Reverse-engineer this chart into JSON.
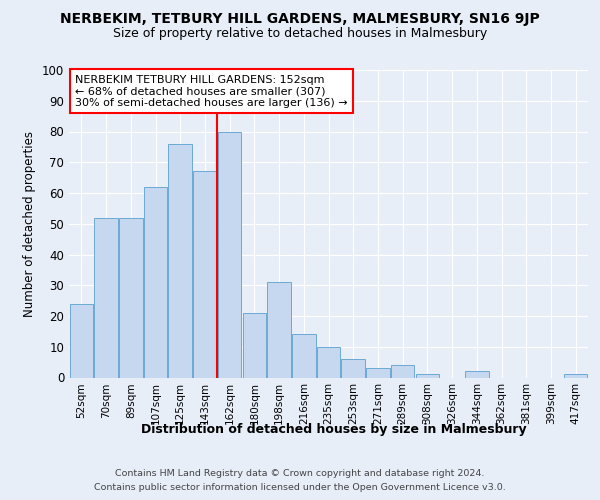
{
  "title1": "NERBEKIM, TETBURY HILL GARDENS, MALMESBURY, SN16 9JP",
  "title2": "Size of property relative to detached houses in Malmesbury",
  "xlabel": "Distribution of detached houses by size in Malmesbury",
  "ylabel": "Number of detached properties",
  "footer1": "Contains HM Land Registry data © Crown copyright and database right 2024.",
  "footer2": "Contains public sector information licensed under the Open Government Licence v3.0.",
  "categories": [
    "52sqm",
    "70sqm",
    "89sqm",
    "107sqm",
    "125sqm",
    "143sqm",
    "162sqm",
    "180sqm",
    "198sqm",
    "216sqm",
    "235sqm",
    "253sqm",
    "271sqm",
    "289sqm",
    "308sqm",
    "326sqm",
    "344sqm",
    "362sqm",
    "381sqm",
    "399sqm",
    "417sqm"
  ],
  "values": [
    24,
    52,
    52,
    62,
    76,
    67,
    80,
    21,
    31,
    14,
    10,
    6,
    3,
    4,
    1,
    0,
    2,
    0,
    0,
    0,
    1
  ],
  "bar_color": "#c5d8f0",
  "bar_edge_color": "#6aaad4",
  "vline_x": 5.5,
  "vline_color": "red",
  "annotation_line1": "NERBEKIM TETBURY HILL GARDENS: 152sqm",
  "annotation_line2": "← 68% of detached houses are smaller (307)",
  "annotation_line3": "30% of semi-detached houses are larger (136) →",
  "annotation_box_facecolor": "white",
  "annotation_box_edgecolor": "red",
  "ylim": [
    0,
    100
  ],
  "yticks": [
    0,
    10,
    20,
    30,
    40,
    50,
    60,
    70,
    80,
    90,
    100
  ],
  "bg_color": "#e8eef8",
  "grid_color": "white"
}
